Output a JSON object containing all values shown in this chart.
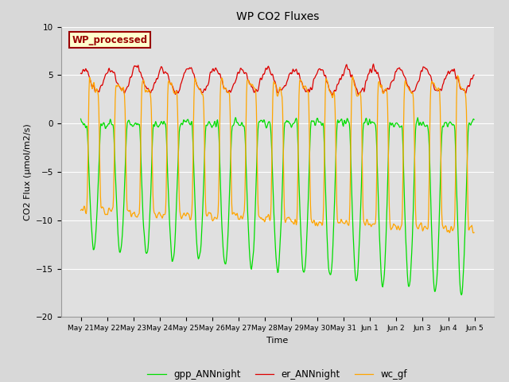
{
  "title": "WP CO2 Fluxes",
  "ylabel": "CO2 Flux (μmol/m2/s)",
  "xlabel": "Time",
  "ylim": [
    -20,
    10
  ],
  "yticks": [
    -20,
    -15,
    -10,
    -5,
    0,
    5,
    10
  ],
  "bg_color": "#e0e0e0",
  "fig_bg": "#d8d8d8",
  "line_green": "#00dd00",
  "line_red": "#dd0000",
  "line_orange": "#ffa500",
  "legend_labels": [
    "gpp_ANNnight",
    "er_ANNnight",
    "wc_gf"
  ],
  "annotation_text": "WP_processed",
  "annotation_bg": "#ffffcc",
  "annotation_fg": "#990000",
  "n_days": 15,
  "half_hour_steps": 48
}
